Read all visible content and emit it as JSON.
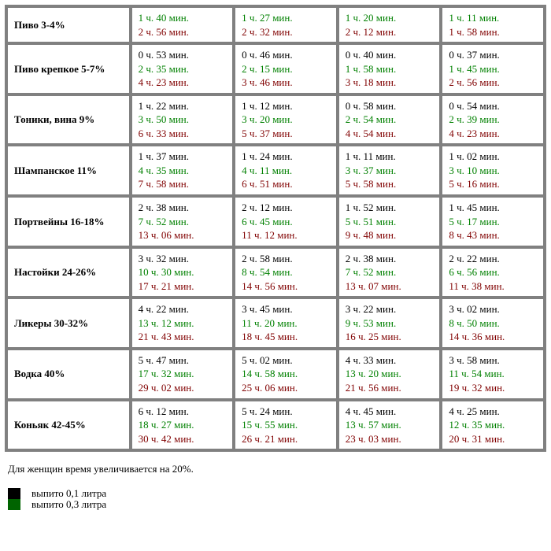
{
  "colors": {
    "time_row0": "#000000",
    "time_row1": "#008000",
    "time_row2": "#800000",
    "border": "#808080",
    "background": "#ffffff"
  },
  "time_color_classes": [
    "c-black",
    "c-green",
    "c-red"
  ],
  "rows": [
    {
      "label": "Пиво 3-4%",
      "cells": [
        [
          "1 ч. 40 мин.",
          "2 ч. 56 мин."
        ],
        [
          "1 ч. 27 мин.",
          "2 ч. 32 мин."
        ],
        [
          "1 ч. 20 мин.",
          "2 ч. 12 мин."
        ],
        [
          "1 ч. 11 мин.",
          "1 ч. 58 мин."
        ]
      ],
      "start_color": 1
    },
    {
      "label": "Пиво крепкое 5-7%",
      "cells": [
        [
          "0 ч. 53 мин.",
          "2 ч. 35 мин.",
          "4 ч. 23 мин."
        ],
        [
          "0 ч. 46 мин.",
          "2 ч. 15 мин.",
          "3 ч. 46 мин."
        ],
        [
          "0 ч. 40 мин.",
          "1 ч. 58 мин.",
          "3 ч. 18 мин."
        ],
        [
          "0 ч. 37 мин.",
          "1 ч. 45 мин.",
          "2 ч. 56 мин."
        ]
      ],
      "start_color": 0
    },
    {
      "label": "Тоники, вина 9%",
      "cells": [
        [
          "1 ч. 22 мин.",
          "3 ч. 50 мин.",
          "6 ч. 33 мин."
        ],
        [
          "1 ч. 12 мин.",
          "3 ч. 20 мин.",
          "5 ч. 37 мин."
        ],
        [
          "0 ч. 58 мин.",
          "2 ч. 54 мин.",
          "4 ч. 54 мин."
        ],
        [
          "0 ч. 54 мин.",
          "2 ч. 39 мин.",
          "4 ч. 23 мин."
        ]
      ],
      "start_color": 0
    },
    {
      "label": "Шампанское 11%",
      "cells": [
        [
          "1 ч. 37 мин.",
          "4 ч. 35 мин.",
          "7 ч. 58 мин."
        ],
        [
          "1 ч. 24 мин.",
          "4 ч. 11 мин.",
          "6 ч. 51 мин."
        ],
        [
          "1 ч. 11 мин.",
          "3 ч. 37 мин.",
          "5 ч. 58 мин."
        ],
        [
          "1 ч. 02 мин.",
          "3 ч. 10 мин.",
          "5 ч. 16 мин."
        ]
      ],
      "start_color": 0
    },
    {
      "label": "Портвейны 16-18%",
      "cells": [
        [
          "2 ч. 38 мин.",
          "7 ч. 52 мин.",
          "13 ч. 06 мин."
        ],
        [
          "2 ч. 12 мин.",
          "6 ч. 45 мин.",
          "11 ч. 12 мин."
        ],
        [
          "1 ч. 52 мин.",
          "5 ч. 51 мин.",
          "9 ч. 48 мин."
        ],
        [
          "1 ч. 45 мин.",
          "5 ч. 17 мин.",
          "8 ч. 43 мин."
        ]
      ],
      "start_color": 0
    },
    {
      "label": "Настойки 24-26%",
      "cells": [
        [
          "3 ч. 32 мин.",
          "10 ч. 30 мин.",
          "17 ч. 21 мин."
        ],
        [
          "2 ч. 58 мин.",
          "8 ч. 54 мин.",
          "14 ч. 56 мин."
        ],
        [
          "2 ч. 38 мин.",
          "7 ч. 52 мин.",
          "13 ч. 07 мин."
        ],
        [
          "2 ч. 22 мин.",
          "6 ч. 56 мин.",
          "11 ч. 38 мин."
        ]
      ],
      "start_color": 0
    },
    {
      "label": "Ликеры 30-32%",
      "cells": [
        [
          "4 ч. 22 мин.",
          "13 ч. 12 мин.",
          "21 ч. 43 мин."
        ],
        [
          "3 ч. 45 мин.",
          "11 ч. 20 мин.",
          "18 ч. 45 мин."
        ],
        [
          "3 ч. 22 мин.",
          "9 ч. 53 мин.",
          "16 ч. 25 мин."
        ],
        [
          "3 ч. 02 мин.",
          "8 ч. 50 мин.",
          "14 ч. 36 мин."
        ]
      ],
      "start_color": 0
    },
    {
      "label": "Водка 40%",
      "cells": [
        [
          "5 ч. 47 мин.",
          "17 ч. 32 мин.",
          "29 ч. 02 мин."
        ],
        [
          "5 ч. 02 мин.",
          "14 ч. 58 мин.",
          "25 ч. 06 мин."
        ],
        [
          "4 ч. 33 мин.",
          "13 ч. 20 мин.",
          "21 ч. 56 мин."
        ],
        [
          "3 ч. 58 мин.",
          "11 ч. 54 мин.",
          "19 ч. 32 мин."
        ]
      ],
      "start_color": 0
    },
    {
      "label": "Коньяк 42-45%",
      "cells": [
        [
          "6 ч. 12 мин.",
          "18 ч. 27 мин.",
          "30 ч. 42 мин."
        ],
        [
          "5 ч. 24 мин.",
          "15 ч. 55 мин.",
          "26 ч. 21 мин."
        ],
        [
          "4 ч. 45 мин.",
          "13 ч. 57 мин.",
          "23 ч. 03 мин."
        ],
        [
          "4 ч. 25 мин.",
          "12 ч. 35 мин.",
          "20 ч. 31 мин."
        ]
      ],
      "start_color": 0
    }
  ],
  "note": "Для женщин время увеличивается на 20%.",
  "legend": [
    {
      "swatch_color": "#000000",
      "swatch_class": "sw-black",
      "text": "выпито 0,1 литра"
    },
    {
      "swatch_color": "#006400",
      "swatch_class": "sw-green",
      "text": "выпито 0,3 литра"
    }
  ]
}
